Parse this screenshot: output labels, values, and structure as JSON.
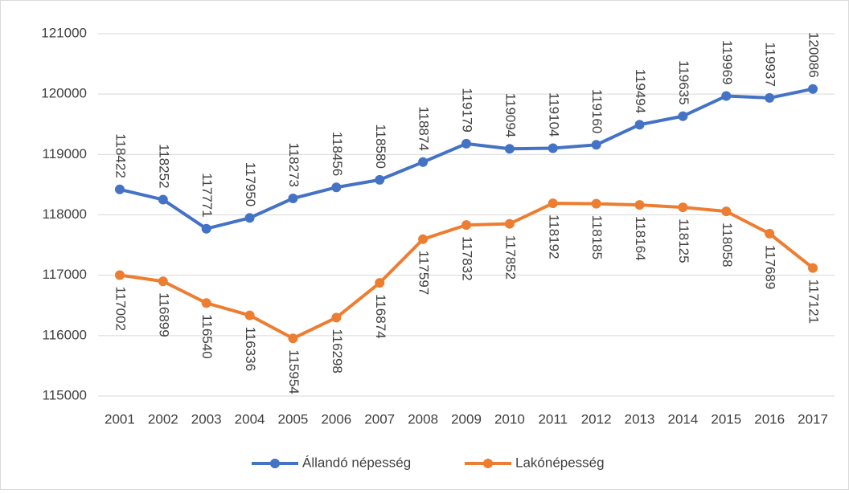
{
  "chart_data": {
    "type": "line",
    "categories": [
      "2001",
      "2002",
      "2003",
      "2004",
      "2005",
      "2006",
      "2007",
      "2008",
      "2009",
      "2010",
      "2011",
      "2012",
      "2013",
      "2014",
      "2015",
      "2016",
      "2017"
    ],
    "series": [
      {
        "name": "Állandó népesség",
        "color": "#4472c4",
        "values": [
          118422,
          118252,
          117771,
          117950,
          118273,
          118456,
          118580,
          118874,
          119179,
          119094,
          119104,
          119160,
          119494,
          119635,
          119969,
          119937,
          120086
        ]
      },
      {
        "name": "Lakónépesség",
        "color": "#ed7d31",
        "values": [
          117002,
          116899,
          116540,
          116336,
          115954,
          116298,
          116874,
          117597,
          117832,
          117852,
          118192,
          118185,
          118164,
          118125,
          118058,
          117689,
          117121
        ]
      }
    ],
    "ylim": [
      115000,
      121000
    ],
    "yticks": [
      115000,
      116000,
      117000,
      118000,
      119000,
      120000,
      121000
    ],
    "grid": true,
    "legend": "bottom"
  }
}
